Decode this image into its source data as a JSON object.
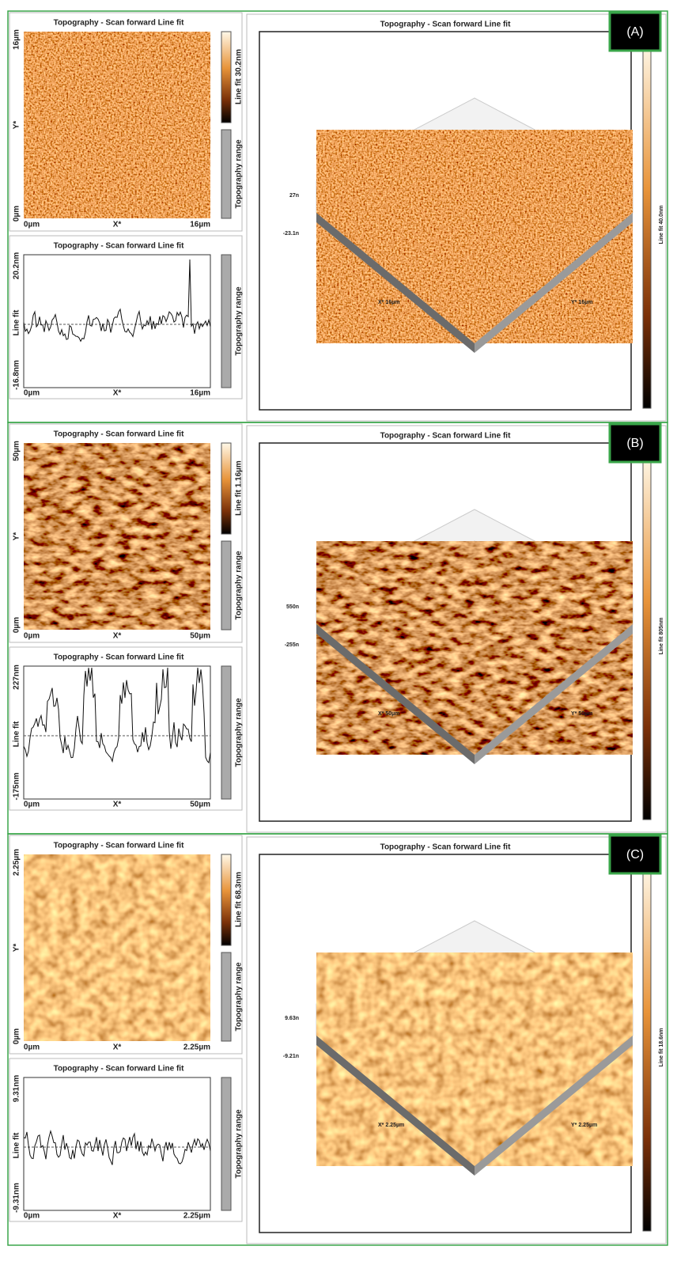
{
  "panels": [
    {
      "label": "(A)",
      "image": {
        "title": "Topography - Scan forward   Line fit",
        "y_top": "16µm",
        "y_mid": "Y*",
        "y_bottom": "0µm",
        "x_left": "0µm",
        "x_mid": "X*",
        "x_right": "16µm",
        "colorbar": "Line fit 30.2nm",
        "range": "Topography range"
      },
      "profile": {
        "title": "Topography - Scan forward   Line fit",
        "y_top": "20.2nm",
        "y_mid": "Line fit",
        "y_bottom": "-16.8nm",
        "x_left": "0µm",
        "x_mid": "X*",
        "x_right": "16µm",
        "range": "Topography range"
      },
      "view3d": {
        "title": "Topography - Scan forward   Line fit",
        "z_top": "27n",
        "z_bottom": "-23.1n",
        "x_axis": "X* 16µm",
        "y_axis": "Y* 16µm",
        "colorbar": "Line fit 40.0nm"
      }
    },
    {
      "label": "(B)",
      "image": {
        "title": "Topography - Scan forward   Line fit",
        "y_top": "50µm",
        "y_mid": "Y*",
        "y_bottom": "0µm",
        "x_left": "0µm",
        "x_mid": "X*",
        "x_right": "50µm",
        "colorbar": "Line fit 1.16µm",
        "range": "Topography range"
      },
      "profile": {
        "title": "Topography - Scan forward   Line fit",
        "y_top": "227nm",
        "y_mid": "Line fit",
        "y_bottom": "-175nm",
        "x_left": "0µm",
        "x_mid": "X*",
        "x_right": "50µm",
        "range": "Topography range"
      },
      "view3d": {
        "title": "Topography - Scan forward   Line fit",
        "z_top": "550n",
        "z_bottom": "-255n",
        "x_axis": "X* 50µm",
        "y_axis": "Y* 50µm",
        "colorbar": "Line fit 805nm"
      }
    },
    {
      "label": "(C)",
      "image": {
        "title": "Topography - Scan forward   Line fit",
        "y_top": "2.25µm",
        "y_mid": "Y*",
        "y_bottom": "0µm",
        "x_left": "0µm",
        "x_mid": "X*",
        "x_right": "2.25µm",
        "colorbar": "Line fit 68.3nm",
        "range": "Topography range"
      },
      "profile": {
        "title": "Topography - Scan forward   Line fit",
        "y_top": "9.31nm",
        "y_mid": "Line fit",
        "y_bottom": "-9.31nm",
        "x_left": "0µm",
        "x_mid": "X*",
        "x_right": "2.25µm",
        "range": "Topography range"
      },
      "view3d": {
        "title": "Topography - Scan forward   Line fit",
        "z_top": "9.63n",
        "z_bottom": "-9.21n",
        "x_axis": "X* 2.25µm",
        "y_axis": "Y* 2.25µm",
        "colorbar": "Line fit 18.6nm"
      }
    }
  ]
}
